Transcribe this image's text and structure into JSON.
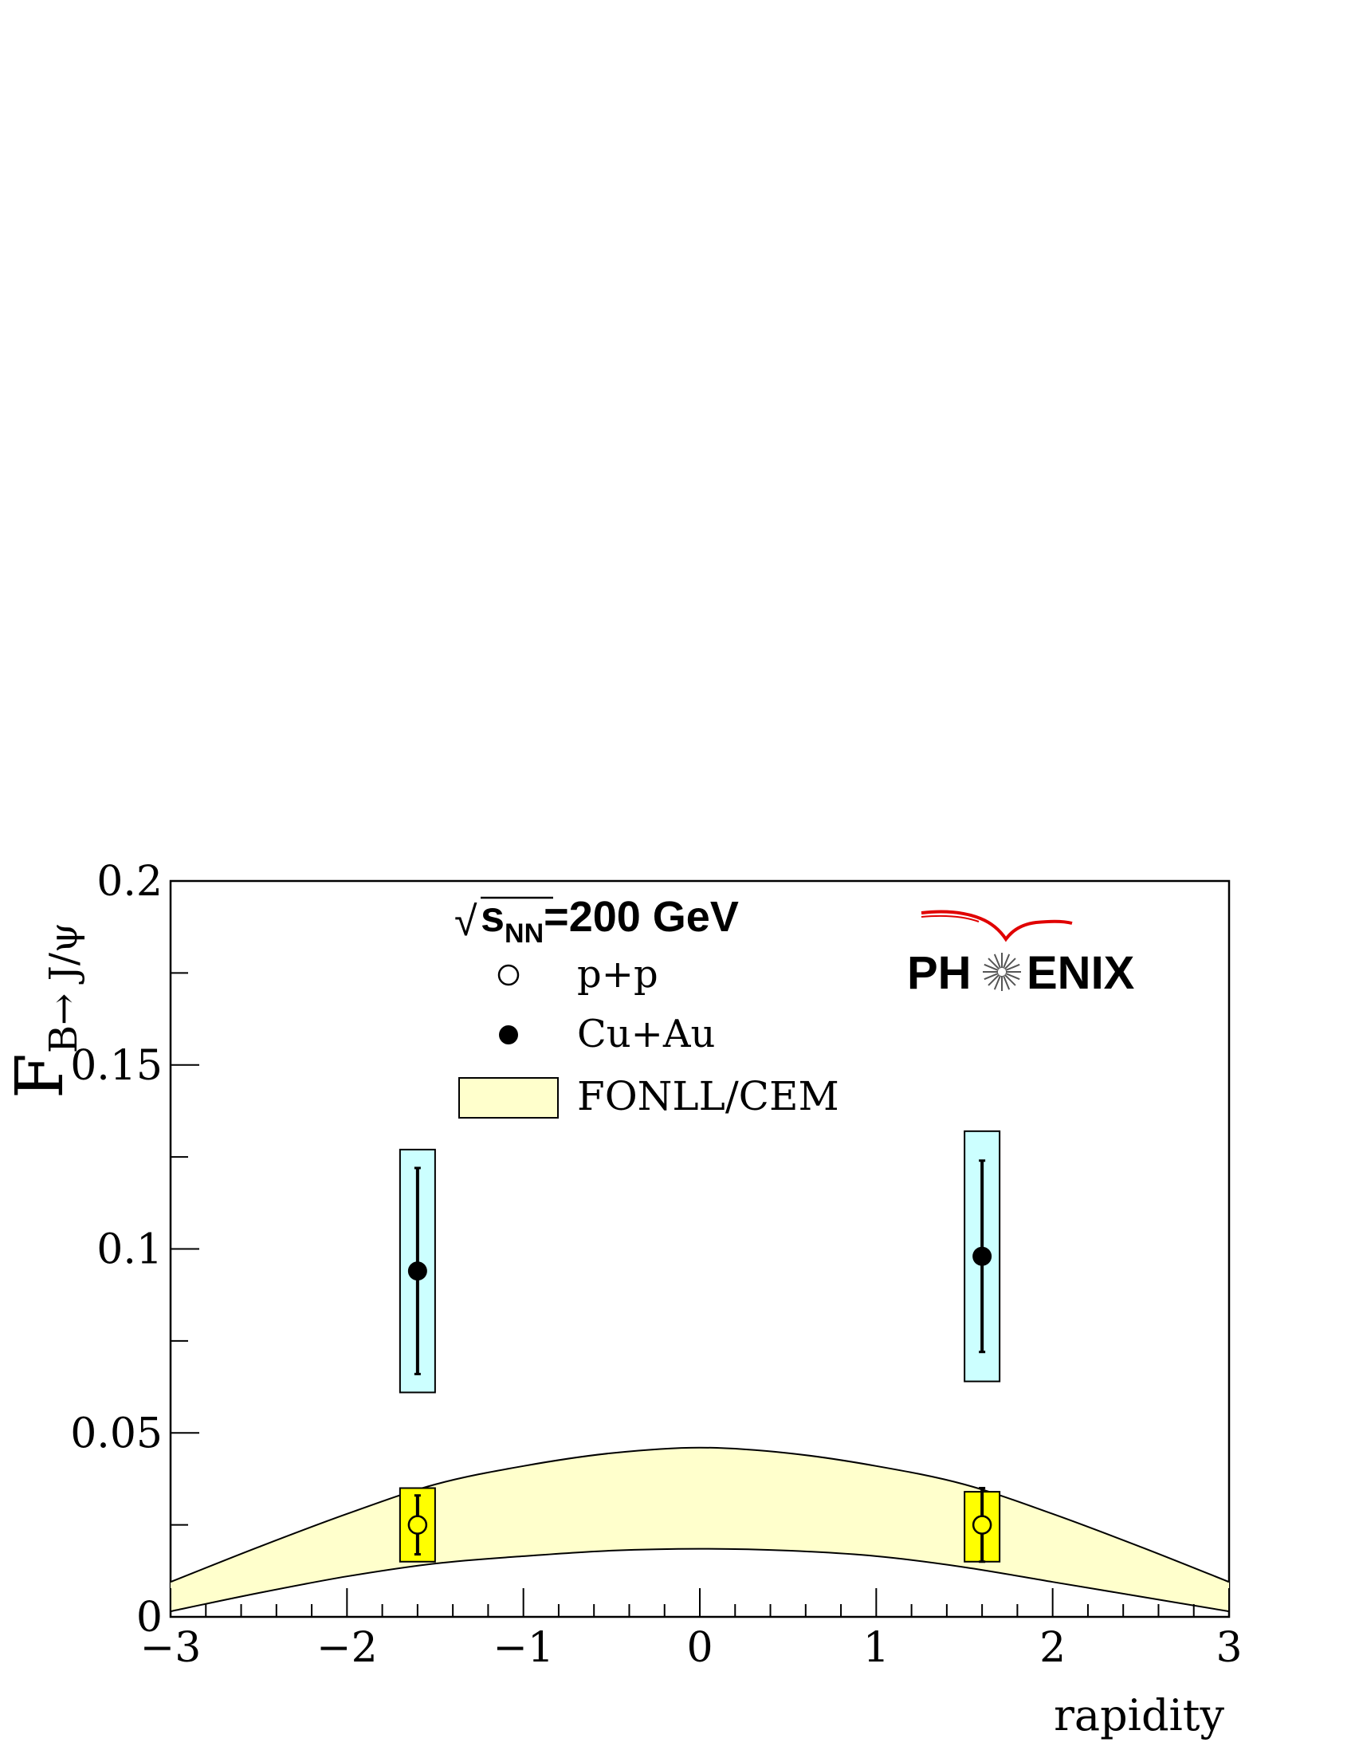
{
  "chart_data": {
    "type": "scatter",
    "title": "",
    "xlabel": "rapidity",
    "ylabel_main": "F",
    "ylabel_sub": "B→ J/ψ",
    "xlim": [
      -3,
      3
    ],
    "ylim": [
      0,
      0.2
    ],
    "x_ticks": [
      -3,
      -2,
      -1,
      0,
      1,
      2,
      3
    ],
    "x_tick_labels": [
      "−3",
      "−2",
      "−1",
      "0",
      "1",
      "2",
      "3"
    ],
    "y_ticks": [
      0,
      0.05,
      0.1,
      0.15,
      0.2
    ],
    "y_tick_labels": [
      "0",
      "0.05",
      "0.1",
      "0.15",
      "0.2"
    ],
    "energy_label": {
      "sqrt": "√",
      "s": "s",
      "sub": "NN",
      "rest": "=200 GeV"
    },
    "logo_text": [
      "PH",
      "ENIX"
    ],
    "legend": [
      {
        "name": "p+p",
        "marker": "open-circle"
      },
      {
        "name": "Cu+Au",
        "marker": "filled-circle"
      },
      {
        "name": "FONLL/CEM",
        "marker": "band"
      }
    ],
    "series": [
      {
        "name": "p+p",
        "marker": "open-circle",
        "syst_color": "#ffff00",
        "points": [
          {
            "x": -1.6,
            "y": 0.025,
            "stat_lo": 0.017,
            "stat_hi": 0.033,
            "sys_lo": 0.015,
            "sys_hi": 0.035
          },
          {
            "x": 1.6,
            "y": 0.025,
            "stat_lo": 0.015,
            "stat_hi": 0.035,
            "sys_lo": 0.015,
            "sys_hi": 0.034
          }
        ]
      },
      {
        "name": "Cu+Au",
        "marker": "filled-circle",
        "syst_color": "#ccffff",
        "points": [
          {
            "x": -1.6,
            "y": 0.094,
            "stat_lo": 0.066,
            "stat_hi": 0.122,
            "sys_lo": 0.061,
            "sys_hi": 0.127
          },
          {
            "x": 1.6,
            "y": 0.098,
            "stat_lo": 0.072,
            "stat_hi": 0.124,
            "sys_lo": 0.064,
            "sys_hi": 0.132
          }
        ]
      }
    ],
    "band": {
      "name": "FONLL/CEM",
      "color": "#ffffcc",
      "x": [
        -3,
        -2.5,
        -2,
        -1.5,
        -1,
        -0.5,
        0,
        0.5,
        1,
        1.5,
        2,
        2.5,
        3
      ],
      "upper": [
        0.0095,
        0.019,
        0.028,
        0.036,
        0.041,
        0.0445,
        0.046,
        0.0445,
        0.041,
        0.036,
        0.028,
        0.019,
        0.0095
      ],
      "lower": [
        0.0015,
        0.0065,
        0.011,
        0.0145,
        0.0165,
        0.018,
        0.0185,
        0.018,
        0.0165,
        0.0135,
        0.0095,
        0.0055,
        0.0015
      ]
    }
  }
}
